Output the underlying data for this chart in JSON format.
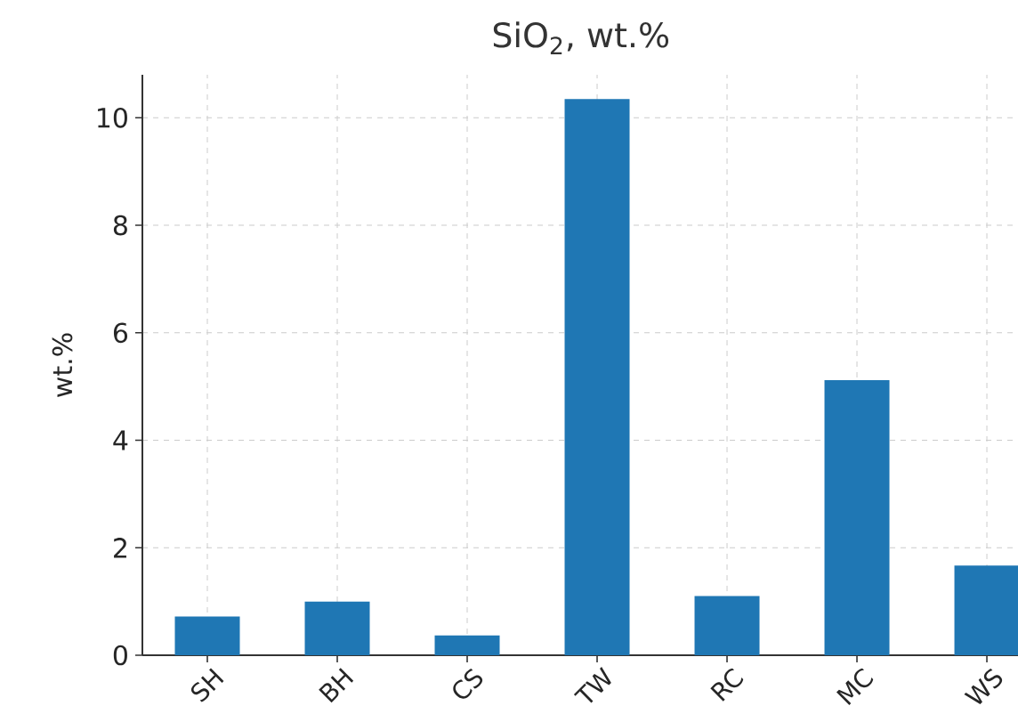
{
  "chart_data": {
    "type": "bar",
    "title": "SiO$_{2}$, wt.%",
    "ylabel": "wt.%",
    "categories": [
      "SH",
      "BH",
      "CS",
      "TW",
      "RC",
      "MC",
      "WS"
    ],
    "values": [
      0.72,
      1.0,
      0.37,
      10.35,
      1.1,
      5.12,
      1.67
    ],
    "color": "#1f77b4",
    "ylim": [
      0,
      10.8
    ],
    "yticks": [
      0,
      2,
      4,
      6,
      8,
      10
    ],
    "grid": true
  }
}
